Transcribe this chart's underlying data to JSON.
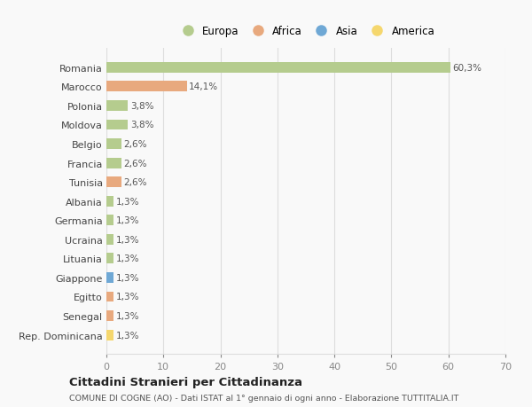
{
  "countries": [
    "Romania",
    "Marocco",
    "Polonia",
    "Moldova",
    "Belgio",
    "Francia",
    "Tunisia",
    "Albania",
    "Germania",
    "Ucraina",
    "Lituania",
    "Giappone",
    "Egitto",
    "Senegal",
    "Rep. Dominicana"
  ],
  "values": [
    60.3,
    14.1,
    3.8,
    3.8,
    2.6,
    2.6,
    2.6,
    1.3,
    1.3,
    1.3,
    1.3,
    1.3,
    1.3,
    1.3,
    1.3
  ],
  "labels": [
    "60,3%",
    "14,1%",
    "3,8%",
    "3,8%",
    "2,6%",
    "2,6%",
    "2,6%",
    "1,3%",
    "1,3%",
    "1,3%",
    "1,3%",
    "1,3%",
    "1,3%",
    "1,3%",
    "1,3%"
  ],
  "colors": [
    "#b5cc8e",
    "#e8a97e",
    "#b5cc8e",
    "#b5cc8e",
    "#b5cc8e",
    "#b5cc8e",
    "#e8a97e",
    "#b5cc8e",
    "#b5cc8e",
    "#b5cc8e",
    "#b5cc8e",
    "#6fa8d5",
    "#e8a97e",
    "#e8a97e",
    "#f5d76e"
  ],
  "legend_labels": [
    "Europa",
    "Africa",
    "Asia",
    "America"
  ],
  "legend_colors": [
    "#b5cc8e",
    "#e8a97e",
    "#6fa8d5",
    "#f5d76e"
  ],
  "title": "Cittadini Stranieri per Cittadinanza",
  "subtitle": "COMUNE DI COGNE (AO) - Dati ISTAT al 1° gennaio di ogni anno - Elaborazione TUTTITALIA.IT",
  "xlim": [
    0,
    70
  ],
  "xticks": [
    0,
    10,
    20,
    30,
    40,
    50,
    60,
    70
  ],
  "bg_color": "#f9f9f9",
  "grid_color": "#dddddd",
  "bar_height": 0.55
}
